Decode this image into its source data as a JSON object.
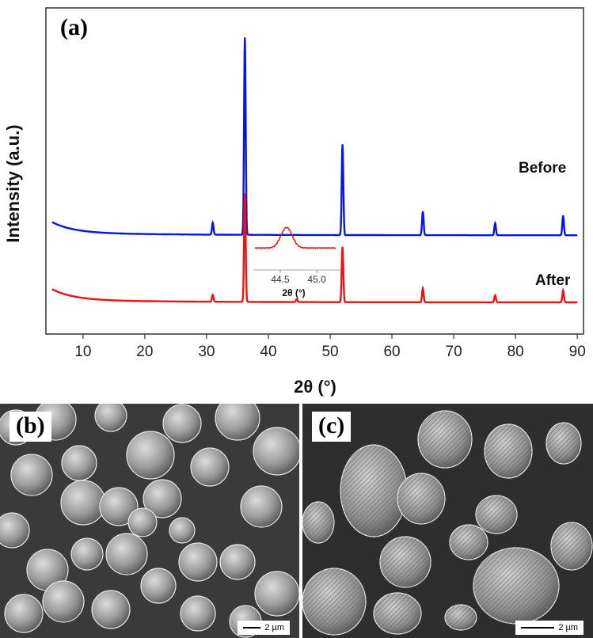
{
  "chart_data": {
    "type": "line",
    "panel_label": "(a)",
    "xlabel": "2θ (°)",
    "ylabel": "Intensity (a.u.)",
    "xlim": [
      4,
      91
    ],
    "xticks": [
      10,
      20,
      30,
      40,
      50,
      60,
      70,
      80,
      90
    ],
    "grid": false,
    "series": [
      {
        "name": "Before",
        "color": "#0a14e6",
        "baseline": 0.34,
        "peaks": [
          {
            "x": 31.0,
            "height": 0.06
          },
          {
            "x": 36.2,
            "height": 1.0
          },
          {
            "x": 52.0,
            "height": 0.46
          },
          {
            "x": 65.0,
            "height": 0.12
          },
          {
            "x": 76.7,
            "height": 0.06
          },
          {
            "x": 87.7,
            "height": 0.1
          }
        ]
      },
      {
        "name": "After",
        "color": "#ee1111",
        "baseline": 0.0,
        "peaks": [
          {
            "x": 31.0,
            "height": 0.035
          },
          {
            "x": 36.2,
            "height": 0.55
          },
          {
            "x": 44.6,
            "height": 0.015
          },
          {
            "x": 52.0,
            "height": 0.28
          },
          {
            "x": 65.0,
            "height": 0.07
          },
          {
            "x": 76.7,
            "height": 0.035
          },
          {
            "x": 87.7,
            "height": 0.06
          }
        ]
      }
    ],
    "inset": {
      "xlabel": "2θ (°)",
      "xticks": [
        "44.5",
        "45.0"
      ],
      "color": "#ee1111"
    }
  },
  "sem_images": [
    {
      "panel_label": "(b)",
      "scale_bar": "2 µm"
    },
    {
      "panel_label": "(c)",
      "scale_bar": "2 µm"
    }
  ]
}
